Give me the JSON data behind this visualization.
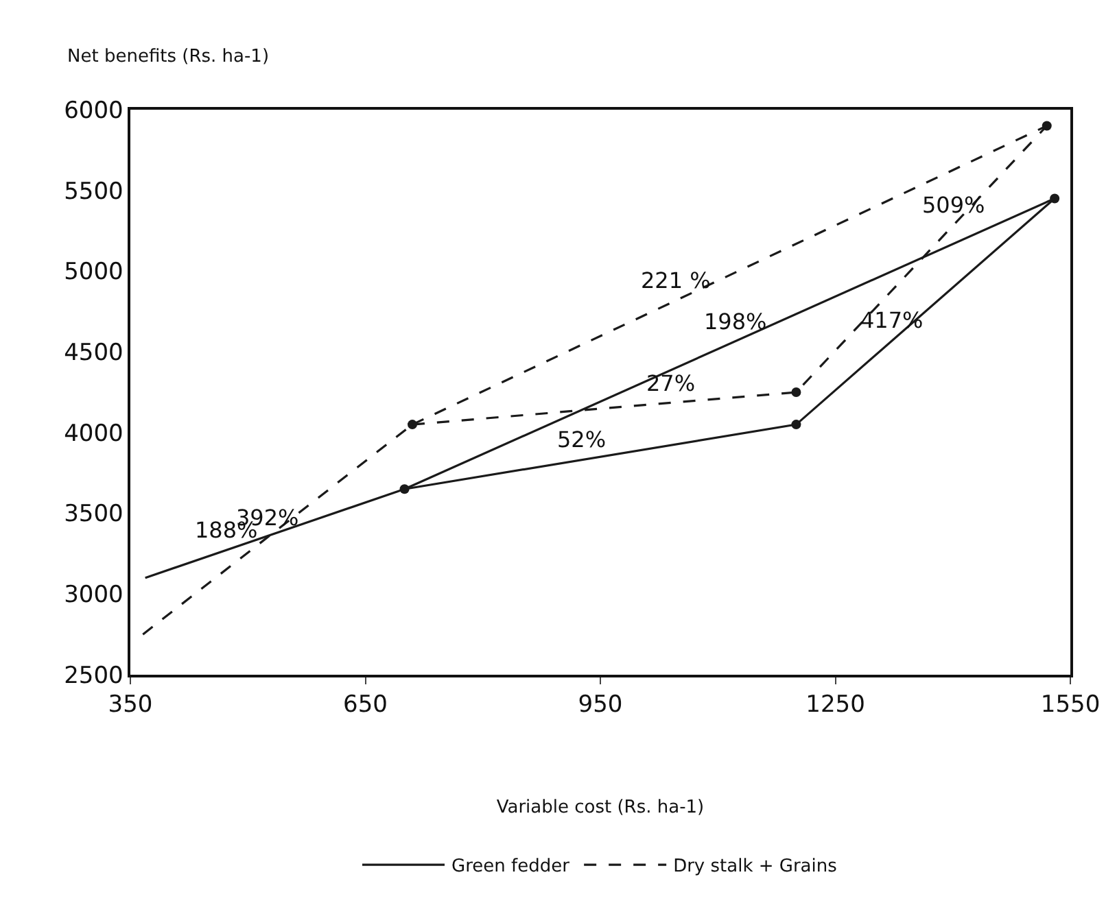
{
  "chart_data": {
    "type": "line",
    "xlabel": "Variable cost (Rs. ha-1)",
    "ylabel": "Net benefits (Rs. ha-1)",
    "xlim": [
      350,
      1550
    ],
    "xticks": [
      350,
      650,
      950,
      1250,
      1550
    ],
    "ylim": [
      2500,
      6000
    ],
    "yticks": [
      2500,
      3000,
      3500,
      4000,
      4500,
      5000,
      5500,
      6000
    ],
    "legend": "bottom",
    "series": [
      {
        "name": "Green fedder",
        "color": "#1a1a1a",
        "x": [
          700,
          1200,
          1530
        ],
        "values": [
          3650,
          4050,
          5450
        ],
        "marker": "circle",
        "line_style": "solid"
      },
      {
        "color": "#1a1a1a",
        "x": [
          369,
          700
        ],
        "values": [
          3100,
          3650
        ],
        "marker": "none",
        "line_style": "solid"
      },
      {
        "color": "#1a1a1a",
        "x": [
          700,
          1530
        ],
        "values": [
          3650,
          5450
        ],
        "marker": "none",
        "line_style": "solid"
      },
      {
        "name": "Dry stalk + Grains",
        "color": "#1a1a1a",
        "x": [
          710,
          1200,
          1520
        ],
        "values": [
          4050,
          4250,
          5900
        ],
        "marker": "circle",
        "line_style": "dashed"
      },
      {
        "color": "#1a1a1a",
        "x": [
          366,
          710
        ],
        "values": [
          2750,
          4050
        ],
        "marker": "none",
        "line_style": "dashed"
      },
      {
        "color": "#1a1a1a",
        "x": [
          710,
          1520
        ],
        "values": [
          4050,
          5900
        ],
        "marker": "none",
        "line_style": "dashed"
      }
    ],
    "annotations": [
      {
        "text": "188%",
        "x": 473,
        "y": 3273
      },
      {
        "text": "392%",
        "x": 525,
        "y": 3351
      },
      {
        "text": "52%",
        "x": 926,
        "y": 3831
      },
      {
        "text": "27%",
        "x": 1040,
        "y": 4185
      },
      {
        "text": "198%",
        "x": 1123,
        "y": 4567
      },
      {
        "text": "221 %",
        "x": 1046,
        "y": 4817
      },
      {
        "text": "509%",
        "x": 1401,
        "y": 5286
      },
      {
        "text": "417%",
        "x": 1323,
        "y": 4572
      }
    ]
  }
}
